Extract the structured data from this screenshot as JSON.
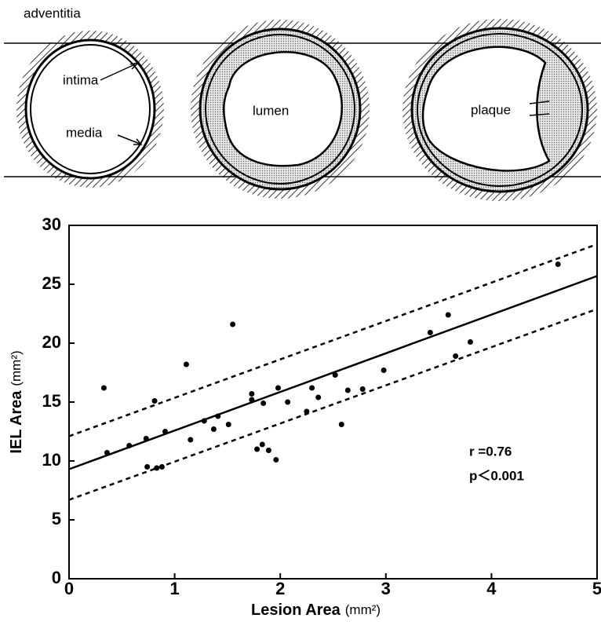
{
  "diagram": {
    "labels": [
      "adventitia",
      "intima",
      "media",
      "lumen",
      "plaque"
    ]
  },
  "chart_data": {
    "type": "scatter",
    "xlabel": "Lesion Area",
    "xlabel_unit": "(mm²)",
    "ylabel": "IEL Area",
    "ylabel_unit": "(mm²)",
    "annotations": [
      "r =0.76",
      "p＜0.001"
    ],
    "xlim": [
      0,
      5
    ],
    "xticks": [
      0,
      1,
      2,
      3,
      4,
      5
    ],
    "ylim": [
      0,
      30
    ],
    "yticks": [
      0,
      5,
      10,
      15,
      20,
      25,
      30
    ],
    "color": "#000000",
    "x": [
      0.33,
      0.36,
      0.57,
      0.73,
      0.74,
      0.81,
      0.83,
      0.88,
      0.91,
      1.11,
      1.15,
      1.28,
      1.37,
      1.41,
      1.51,
      1.55,
      1.73,
      1.73,
      1.78,
      1.83,
      1.84,
      1.89,
      1.96,
      1.98,
      2.07,
      2.25,
      2.3,
      2.36,
      2.52,
      2.58,
      2.64,
      2.78,
      2.98,
      3.42,
      3.59,
      3.66,
      3.8,
      4.63
    ],
    "values": [
      16.2,
      10.7,
      11.3,
      11.9,
      9.5,
      15.1,
      9.4,
      9.5,
      12.5,
      18.2,
      11.8,
      13.4,
      12.7,
      13.8,
      13.1,
      21.6,
      15.7,
      15.2,
      11.0,
      11.4,
      14.9,
      10.9,
      10.1,
      16.2,
      15.0,
      14.2,
      16.2,
      15.4,
      17.3,
      13.1,
      16.0,
      16.1,
      17.7,
      20.9,
      22.4,
      18.9,
      20.1,
      26.7
    ],
    "lines": [
      {
        "x": [
          0,
          5
        ],
        "values": [
          9.3,
          25.7
        ],
        "dashed": false
      },
      {
        "x": [
          0,
          5
        ],
        "values": [
          12.1,
          28.4
        ],
        "dashed": true
      },
      {
        "x": [
          0,
          5
        ],
        "values": [
          6.7,
          22.9
        ],
        "dashed": true
      }
    ]
  }
}
